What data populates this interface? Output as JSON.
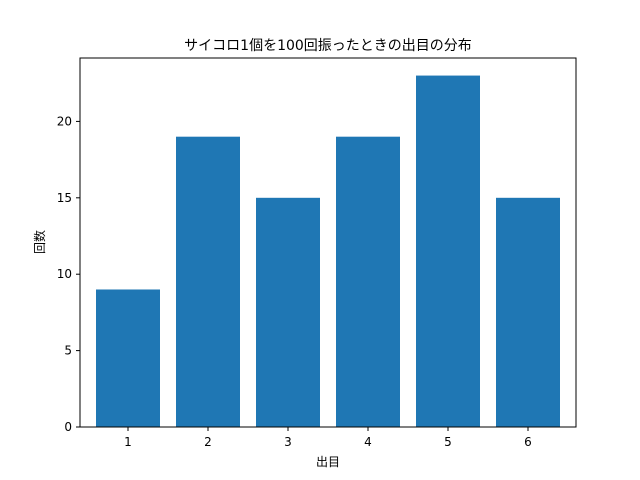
{
  "chart_data": {
    "type": "bar",
    "title": "サイコロ1個を100回振ったときの出目の分布",
    "xlabel": "出目",
    "ylabel": "回数",
    "categories": [
      "1",
      "2",
      "3",
      "4",
      "5",
      "6"
    ],
    "values": [
      9,
      19,
      15,
      19,
      23,
      15
    ],
    "yticks": [
      0,
      5,
      10,
      15,
      20
    ],
    "ylim": [
      0,
      24.15
    ],
    "bar_color": "#1f77b4",
    "grid": false,
    "legend": "none"
  }
}
